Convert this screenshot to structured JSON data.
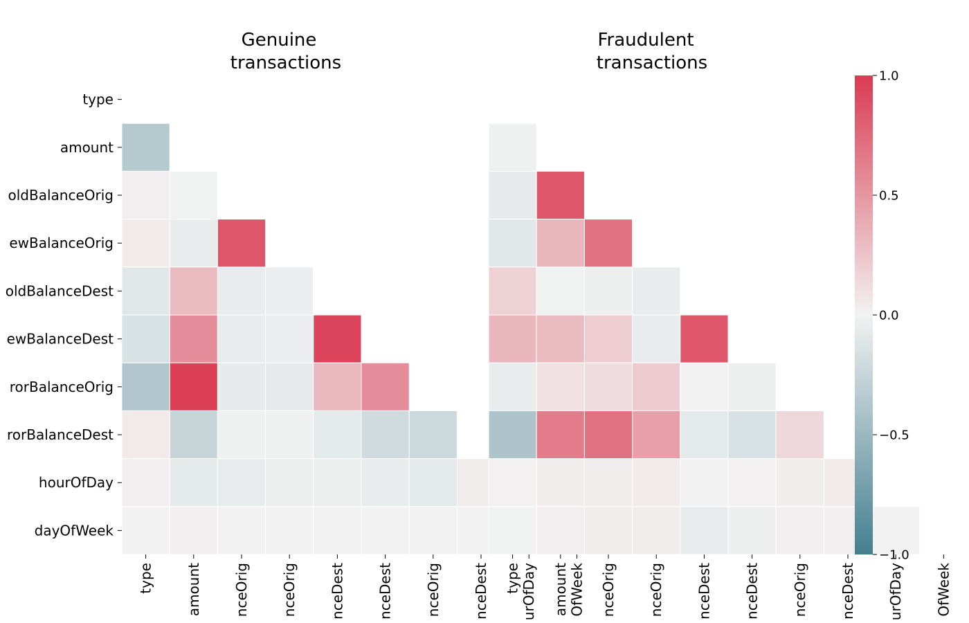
{
  "chart_data": {
    "type": "heatmap",
    "variables": [
      "type",
      "amount",
      "oldBalanceOrig",
      "newBalanceOrig",
      "oldBalanceDest",
      "newBalanceDest",
      "errorBalanceOrig",
      "errorBalanceDest",
      "hourOfDay",
      "dayOfWeek"
    ],
    "x_tick_labels_visible": [
      "type",
      "amount",
      "nceOrig",
      "nceOrig",
      "nceDest",
      "nceDest",
      "nceOrig",
      "nceDest",
      "urOfDay",
      "OfWeek"
    ],
    "y_tick_labels_visible": [
      "type",
      "amount",
      "oldBalanceOrig",
      "ewBalanceOrig",
      "oldBalanceDest",
      "ewBalanceDest",
      "rorBalanceOrig",
      "rorBalanceDest",
      "hourOfDay",
      "dayOfWeek"
    ],
    "mask": "upper triangle including diagonal",
    "colormap": {
      "min": -1.0,
      "max": 1.0,
      "low_color": "#447f8f",
      "mid_color": "#f2f2f2",
      "high_color": "#da3b52"
    },
    "colorbar_ticks": [
      "1.0",
      "0.5",
      "0.0",
      "−0.5",
      "−1.0"
    ],
    "panels": [
      {
        "title_line1": "Genuine",
        "title_line2": "transactions",
        "rows": [
          [],
          [
            -0.35
          ],
          [
            0.02,
            -0.01
          ],
          [
            0.04,
            -0.05,
            0.85
          ],
          [
            -0.1,
            0.3,
            -0.05,
            -0.04
          ],
          [
            -0.15,
            0.55,
            -0.05,
            -0.04,
            0.95
          ],
          [
            -0.38,
            0.97,
            -0.07,
            -0.07,
            0.32,
            0.55
          ],
          [
            0.05,
            -0.25,
            -0.02,
            -0.02,
            -0.08,
            -0.2,
            -0.22
          ],
          [
            0.02,
            -0.08,
            -0.06,
            -0.03,
            -0.03,
            -0.05,
            -0.08,
            0.03
          ],
          [
            0.0,
            0.02,
            0.0,
            0.0,
            0.0,
            0.0,
            0.0,
            0.0,
            0.0
          ]
        ]
      },
      {
        "title_line1": "Fraudulent",
        "title_line2": "transactions",
        "rows": [
          [],
          [
            -0.02
          ],
          [
            -0.07,
            0.85
          ],
          [
            -0.1,
            0.33,
            0.7
          ],
          [
            0.18,
            -0.01,
            -0.03,
            -0.05
          ],
          [
            0.33,
            0.3,
            0.2,
            -0.05,
            0.85
          ],
          [
            -0.05,
            0.1,
            0.12,
            0.22,
            0.0,
            -0.03
          ],
          [
            -0.4,
            0.65,
            0.7,
            0.45,
            -0.08,
            -0.15,
            0.15
          ],
          [
            0.01,
            0.03,
            0.03,
            0.04,
            0.0,
            0.01,
            0.03,
            0.04
          ],
          [
            -0.01,
            0.02,
            0.03,
            0.03,
            -0.06,
            -0.03,
            0.02,
            0.02,
            0.0
          ]
        ]
      }
    ]
  }
}
